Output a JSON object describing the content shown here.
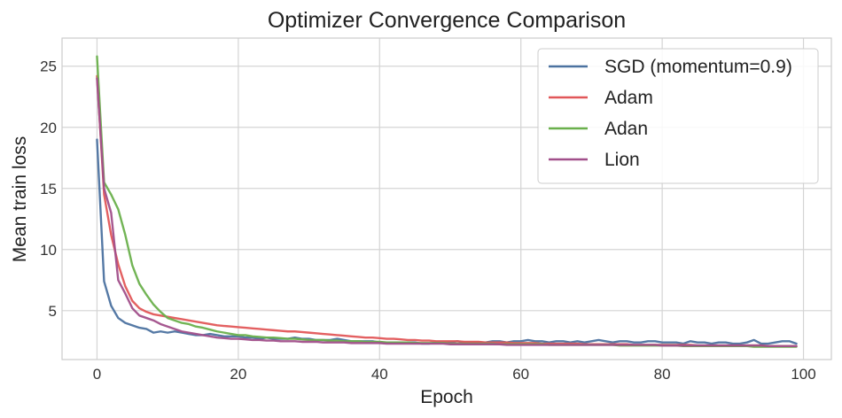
{
  "chart_data": {
    "type": "line",
    "title": "Optimizer Convergence Comparison",
    "xlabel": "Epoch",
    "ylabel": "Mean train loss",
    "xlim": [
      -4.95,
      103.95
    ],
    "ylim": [
      1.0,
      27.3
    ],
    "xticks": [
      0,
      20,
      40,
      60,
      80,
      100
    ],
    "yticks": [
      5,
      10,
      15,
      20,
      25
    ],
    "grid": true,
    "legend_position": "top-right",
    "x": [
      0,
      1,
      2,
      3,
      4,
      5,
      6,
      7,
      8,
      9,
      10,
      11,
      12,
      13,
      14,
      15,
      16,
      17,
      18,
      19,
      20,
      21,
      22,
      23,
      24,
      25,
      26,
      27,
      28,
      29,
      30,
      31,
      32,
      33,
      34,
      35,
      36,
      37,
      38,
      39,
      40,
      41,
      42,
      43,
      44,
      45,
      46,
      47,
      48,
      49,
      50,
      51,
      52,
      53,
      54,
      55,
      56,
      57,
      58,
      59,
      60,
      61,
      62,
      63,
      64,
      65,
      66,
      67,
      68,
      69,
      70,
      71,
      72,
      73,
      74,
      75,
      76,
      77,
      78,
      79,
      80,
      81,
      82,
      83,
      84,
      85,
      86,
      87,
      88,
      89,
      90,
      91,
      92,
      93,
      94,
      95,
      96,
      97,
      98,
      99
    ],
    "series": [
      {
        "name": "SGD (momentum=0.9)",
        "color": "#4c72a0",
        "values": [
          19.0,
          7.4,
          5.4,
          4.4,
          4.0,
          3.8,
          3.6,
          3.5,
          3.2,
          3.3,
          3.2,
          3.3,
          3.2,
          3.1,
          3.0,
          3.0,
          3.1,
          3.0,
          2.9,
          2.9,
          2.9,
          2.8,
          2.8,
          2.7,
          2.8,
          2.7,
          2.7,
          2.7,
          2.8,
          2.7,
          2.7,
          2.6,
          2.6,
          2.6,
          2.7,
          2.6,
          2.5,
          2.5,
          2.5,
          2.5,
          2.4,
          2.4,
          2.4,
          2.4,
          2.4,
          2.4,
          2.3,
          2.3,
          2.4,
          2.4,
          2.4,
          2.5,
          2.4,
          2.4,
          2.4,
          2.4,
          2.5,
          2.5,
          2.4,
          2.5,
          2.5,
          2.6,
          2.5,
          2.5,
          2.4,
          2.5,
          2.5,
          2.4,
          2.5,
          2.4,
          2.5,
          2.6,
          2.5,
          2.4,
          2.5,
          2.5,
          2.4,
          2.4,
          2.5,
          2.5,
          2.4,
          2.4,
          2.4,
          2.3,
          2.5,
          2.4,
          2.4,
          2.3,
          2.4,
          2.4,
          2.3,
          2.3,
          2.4,
          2.6,
          2.3,
          2.3,
          2.4,
          2.5,
          2.5,
          2.3
        ]
      },
      {
        "name": "Adam",
        "color": "#e15759",
        "values": [
          24.2,
          14.5,
          11.2,
          8.8,
          7.0,
          5.8,
          5.2,
          4.9,
          4.7,
          4.6,
          4.5,
          4.4,
          4.3,
          4.2,
          4.1,
          4.0,
          3.9,
          3.8,
          3.75,
          3.7,
          3.65,
          3.6,
          3.55,
          3.5,
          3.45,
          3.4,
          3.35,
          3.3,
          3.3,
          3.25,
          3.2,
          3.15,
          3.1,
          3.05,
          3.0,
          2.95,
          2.9,
          2.85,
          2.8,
          2.8,
          2.75,
          2.7,
          2.7,
          2.65,
          2.6,
          2.6,
          2.55,
          2.55,
          2.5,
          2.5,
          2.5,
          2.5,
          2.45,
          2.45,
          2.45,
          2.4,
          2.4,
          2.4,
          2.4,
          2.35,
          2.35,
          2.35,
          2.35,
          2.3,
          2.3,
          2.3,
          2.3,
          2.3,
          2.3,
          2.25,
          2.25,
          2.25,
          2.25,
          2.25,
          2.25,
          2.25,
          2.2,
          2.2,
          2.2,
          2.2,
          2.2,
          2.2,
          2.2,
          2.2,
          2.2,
          2.15,
          2.15,
          2.15,
          2.15,
          2.15,
          2.15,
          2.15,
          2.15,
          2.15,
          2.15,
          2.1,
          2.1,
          2.1,
          2.1,
          2.1
        ]
      },
      {
        "name": "Adan",
        "color": "#6ab04c",
        "values": [
          25.8,
          15.5,
          14.5,
          13.3,
          11.2,
          8.7,
          7.2,
          6.3,
          5.5,
          4.9,
          4.4,
          4.2,
          4.0,
          3.9,
          3.7,
          3.6,
          3.45,
          3.3,
          3.2,
          3.1,
          3.0,
          3.0,
          2.9,
          2.85,
          2.8,
          2.8,
          2.75,
          2.7,
          2.7,
          2.65,
          2.6,
          2.6,
          2.6,
          2.55,
          2.55,
          2.5,
          2.5,
          2.5,
          2.45,
          2.45,
          2.45,
          2.4,
          2.4,
          2.4,
          2.4,
          2.35,
          2.35,
          2.35,
          2.35,
          2.35,
          2.3,
          2.3,
          2.3,
          2.3,
          2.3,
          2.3,
          2.3,
          2.25,
          2.25,
          2.25,
          2.25,
          2.25,
          2.25,
          2.25,
          2.2,
          2.2,
          2.2,
          2.2,
          2.2,
          2.2,
          2.2,
          2.2,
          2.2,
          2.2,
          2.15,
          2.15,
          2.15,
          2.15,
          2.15,
          2.15,
          2.15,
          2.15,
          2.15,
          2.1,
          2.1,
          2.1,
          2.1,
          2.1,
          2.1,
          2.1,
          2.1,
          2.1,
          2.1,
          2.05,
          2.05,
          2.05,
          2.05,
          2.05,
          2.05,
          2.05
        ]
      },
      {
        "name": "Lion",
        "color": "#a14f8a",
        "values": [
          24.0,
          15.0,
          13.0,
          7.5,
          6.4,
          5.2,
          4.6,
          4.4,
          4.2,
          3.9,
          3.7,
          3.5,
          3.3,
          3.2,
          3.1,
          3.0,
          2.9,
          2.8,
          2.75,
          2.7,
          2.7,
          2.65,
          2.6,
          2.6,
          2.55,
          2.55,
          2.5,
          2.5,
          2.5,
          2.45,
          2.45,
          2.45,
          2.4,
          2.4,
          2.4,
          2.4,
          2.35,
          2.35,
          2.35,
          2.35,
          2.35,
          2.3,
          2.3,
          2.3,
          2.3,
          2.3,
          2.3,
          2.3,
          2.3,
          2.3,
          2.25,
          2.25,
          2.25,
          2.25,
          2.25,
          2.25,
          2.25,
          2.25,
          2.2,
          2.2,
          2.2,
          2.2,
          2.2,
          2.2,
          2.2,
          2.2,
          2.2,
          2.2,
          2.2,
          2.2,
          2.2,
          2.2,
          2.2,
          2.2,
          2.2,
          2.2,
          2.2,
          2.2,
          2.2,
          2.2,
          2.15,
          2.15,
          2.15,
          2.15,
          2.15,
          2.15,
          2.15,
          2.15,
          2.15,
          2.15,
          2.15,
          2.15,
          2.15,
          2.15,
          2.15,
          2.1,
          2.1,
          2.1,
          2.1,
          2.1
        ]
      }
    ]
  }
}
